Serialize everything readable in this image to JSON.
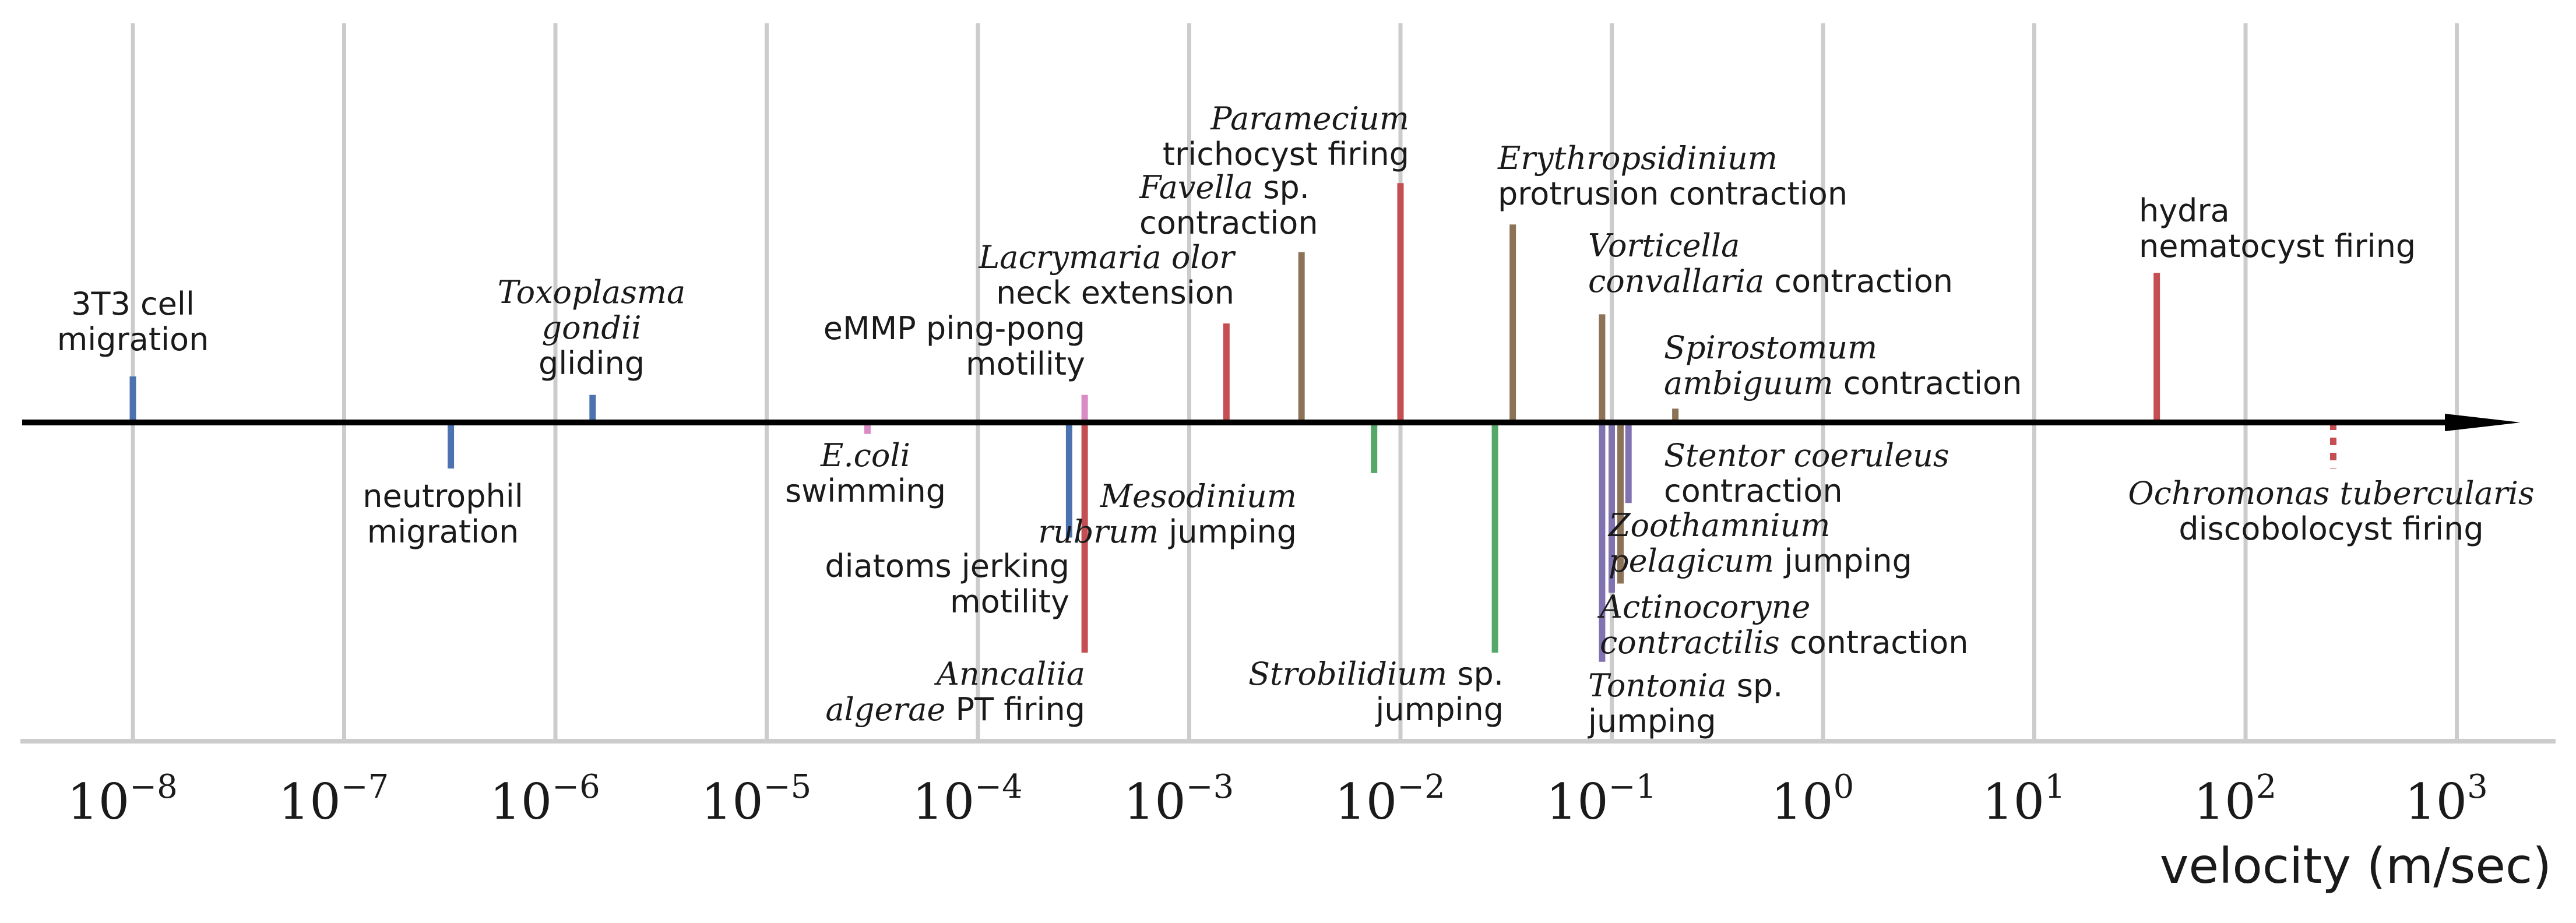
{
  "chart_data": {
    "type": "scatter",
    "xscale": "log",
    "xlabel": "velocity (m/sec)",
    "xlim": [
      2e-09,
      5000.0
    ],
    "grid": true,
    "xticks": [
      {
        "value": 1e-08,
        "base": "10",
        "exp": "−8"
      },
      {
        "value": 1e-07,
        "base": "10",
        "exp": "−7"
      },
      {
        "value": 1e-06,
        "base": "10",
        "exp": "−6"
      },
      {
        "value": 1e-05,
        "base": "10",
        "exp": "−5"
      },
      {
        "value": 0.0001,
        "base": "10",
        "exp": "−4"
      },
      {
        "value": 0.001,
        "base": "10",
        "exp": "−3"
      },
      {
        "value": 0.01,
        "base": "10",
        "exp": "−2"
      },
      {
        "value": 0.1,
        "base": "10",
        "exp": "−1"
      },
      {
        "value": 1,
        "base": "10",
        "exp": "0"
      },
      {
        "value": 10,
        "base": "10",
        "exp": "1"
      },
      {
        "value": 100,
        "base": "10",
        "exp": "2"
      },
      {
        "value": 1000,
        "base": "10",
        "exp": "3"
      }
    ],
    "colors": {
      "blue": "#4c72b0",
      "red": "#c44e52",
      "brown": "#8c7358",
      "green": "#55a868",
      "purple": "#8172b2",
      "pink": "#da8bc3",
      "axis": "#000000",
      "grid": "#cccccc"
    },
    "points": [
      {
        "velocity": 1e-08,
        "color": "blue",
        "side": "up",
        "height": 0.2,
        "label": [
          [
            {
              "t": "3T3 cell"
            }
          ],
          [
            {
              "t": "migration"
            }
          ]
        ]
      },
      {
        "velocity": 3.2e-07,
        "color": "blue",
        "side": "down",
        "height": 0.2,
        "label": [
          [
            {
              "t": "neutrophil"
            }
          ],
          [
            {
              "t": "migration"
            }
          ]
        ]
      },
      {
        "velocity": 1.5e-06,
        "color": "blue",
        "side": "up",
        "height": 0.12,
        "label": [
          [
            {
              "t": "Toxoplasma",
              "i": true
            }
          ],
          [
            {
              "t": "gondii",
              "i": true
            }
          ],
          [
            {
              "t": "gliding"
            }
          ]
        ]
      },
      {
        "velocity": 3e-05,
        "color": "pink",
        "side": "down",
        "height": 0.05,
        "label": [
          [
            {
              "t": "E.coli",
              "i": true
            }
          ],
          [
            {
              "t": "swimming"
            }
          ]
        ]
      },
      {
        "velocity": 0.00027,
        "color": "blue",
        "side": "down",
        "height": 0.5,
        "label": [
          [
            {
              "t": "diatoms jerking"
            }
          ],
          [
            {
              "t": "motility"
            }
          ]
        ]
      },
      {
        "velocity": 0.00032,
        "color": "pink",
        "side": "up",
        "height": 0.12,
        "label": [
          [
            {
              "t": "eMMP ping-pong"
            }
          ],
          [
            {
              "t": "motility"
            }
          ]
        ]
      },
      {
        "velocity": 0.00032,
        "color": "red",
        "side": "down",
        "height": 1.0,
        "label": [
          [
            {
              "t": "Anncaliia",
              "i": true
            }
          ],
          [
            {
              "t": "algerae",
              "i": true
            },
            {
              "t": " PT firing"
            }
          ]
        ]
      },
      {
        "velocity": 0.0015,
        "color": "red",
        "side": "up",
        "height": 0.43,
        "label": [
          [
            {
              "t": "Lacrymaria olor",
              "i": true
            }
          ],
          [
            {
              "t": "neck extension"
            }
          ]
        ]
      },
      {
        "velocity": 0.0034,
        "color": "brown",
        "side": "up",
        "height": 0.74,
        "label": [
          [
            {
              "t": "Favella",
              "i": true
            },
            {
              "t": " sp."
            }
          ],
          [
            {
              "t": "contraction"
            }
          ]
        ]
      },
      {
        "velocity": 0.0075,
        "color": "green",
        "side": "down",
        "height": 0.22,
        "label": [
          [
            {
              "t": "Mesodinium",
              "i": true
            }
          ],
          [
            {
              "t": "rubrum",
              "i": true
            },
            {
              "t": " jumping"
            }
          ]
        ]
      },
      {
        "velocity": 0.01,
        "color": "red",
        "side": "up",
        "height": 1.04,
        "label": [
          [
            {
              "t": "Paramecium",
              "i": true
            }
          ],
          [
            {
              "t": "trichocyst firing"
            }
          ]
        ]
      },
      {
        "velocity": 0.028,
        "color": "green",
        "side": "down",
        "height": 1.0,
        "label": [
          [
            {
              "t": "Strobilidium",
              "i": true
            },
            {
              "t": " sp."
            }
          ],
          [
            {
              "t": "jumping"
            }
          ]
        ]
      },
      {
        "velocity": 0.034,
        "color": "brown",
        "side": "up",
        "height": 0.86,
        "label": [
          [
            {
              "t": "Erythropsidinium",
              "i": true
            }
          ],
          [
            {
              "t": "protrusion contraction"
            }
          ]
        ]
      },
      {
        "velocity": 0.09,
        "color": "brown",
        "side": "up",
        "height": 0.47,
        "label": [
          [
            {
              "t": "Vorticella",
              "i": true
            }
          ],
          [
            {
              "t": "convallaria",
              "i": true
            },
            {
              "t": " contraction"
            }
          ]
        ]
      },
      {
        "velocity": 0.09,
        "color": "purple",
        "side": "down",
        "height": 1.04,
        "label": [
          [
            {
              "t": "Tontonia",
              "i": true
            },
            {
              "t": " sp."
            }
          ],
          [
            {
              "t": "jumping"
            }
          ]
        ]
      },
      {
        "velocity": 0.1,
        "color": "purple",
        "side": "down",
        "height": 0.74,
        "label": [
          [
            {
              "t": "Actinocoryne",
              "i": true
            }
          ],
          [
            {
              "t": "contractilis",
              "i": true
            },
            {
              "t": " contraction"
            }
          ]
        ]
      },
      {
        "velocity": 0.11,
        "color": "brown",
        "side": "down",
        "height": 0.7,
        "label": [
          [
            {
              "t": "Zoothamnium",
              "i": true
            }
          ],
          [
            {
              "t": "pelagicum",
              "i": true
            },
            {
              "t": " jumping"
            }
          ]
        ]
      },
      {
        "velocity": 0.12,
        "color": "purple",
        "side": "down",
        "height": 0.35,
        "label": [
          [
            {
              "t": "Stentor coeruleus",
              "i": true
            }
          ],
          [
            {
              "t": "contraction"
            }
          ]
        ]
      },
      {
        "velocity": 0.2,
        "color": "brown",
        "side": "up",
        "height": 0.06,
        "label": [
          [
            {
              "t": "Spirostomum",
              "i": true
            }
          ],
          [
            {
              "t": "ambiguum",
              "i": true
            },
            {
              "t": " contraction"
            }
          ]
        ]
      },
      {
        "velocity": 38,
        "color": "red",
        "side": "up",
        "height": 0.65,
        "label": [
          [
            {
              "t": "hydra"
            }
          ],
          [
            {
              "t": "nematocyst firing"
            }
          ]
        ]
      },
      {
        "velocity": 260,
        "color": "red",
        "side": "down",
        "height": 0.2,
        "dashed": true,
        "label": [
          [
            {
              "t": "Ochromonas tubercularis",
              "i": true
            }
          ],
          [
            {
              "t": "discobolocyst firing"
            }
          ]
        ]
      }
    ]
  }
}
